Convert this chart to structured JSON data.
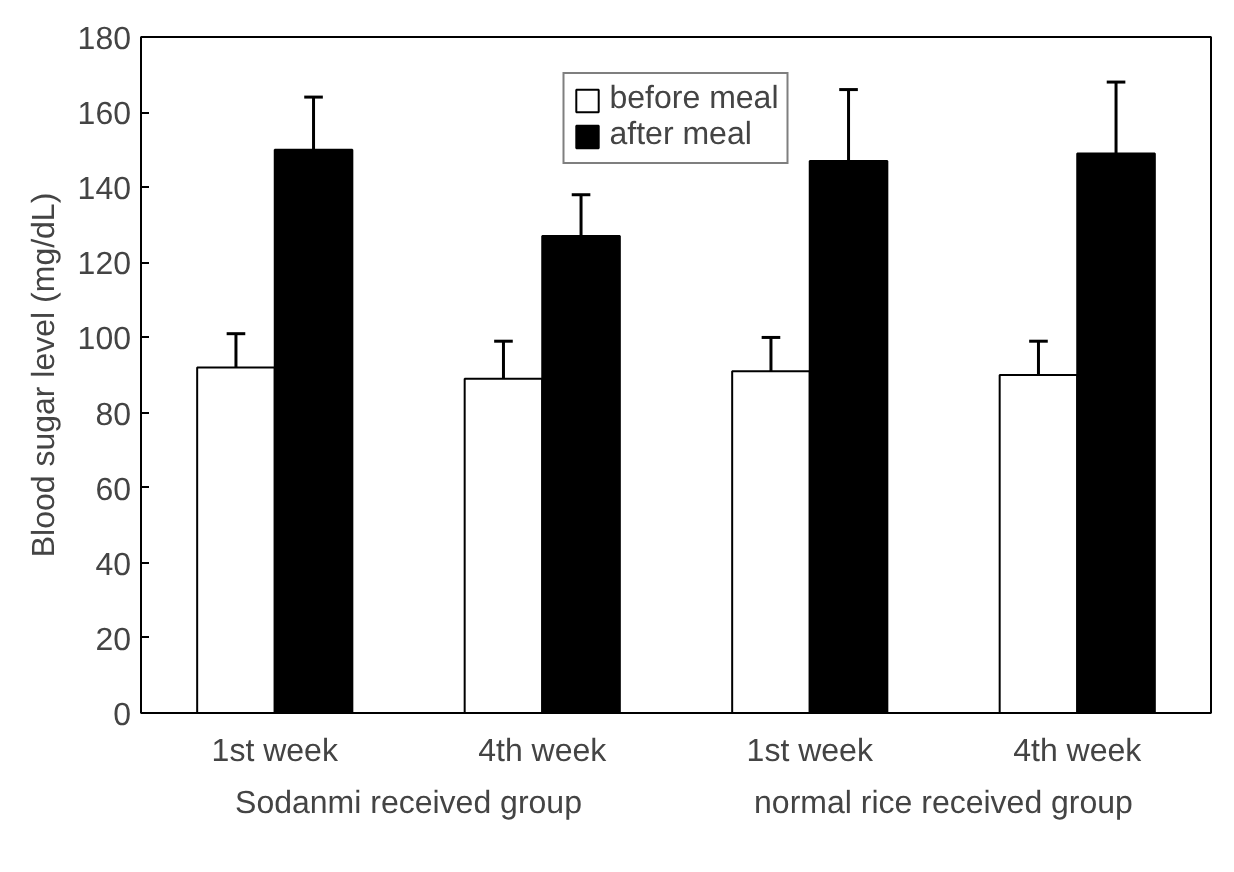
{
  "chart_data": {
    "type": "bar",
    "categories": [
      "1st week",
      "4th week",
      "1st week",
      "4th week"
    ],
    "ylabel": "Blood sugar level (mg/dL)",
    "annotations": [
      "Sodanmi received group",
      "normal rice received group"
    ],
    "series": [
      {
        "name": "before meal",
        "color": "#ffffff",
        "values": [
          92,
          89,
          91,
          90
        ],
        "errors": [
          [
            92,
            101
          ],
          [
            89,
            99
          ],
          [
            91,
            100
          ],
          [
            90,
            99
          ]
        ]
      },
      {
        "name": "after meal",
        "color": "#000000",
        "values": [
          150,
          127,
          147,
          149
        ],
        "errors": [
          [
            150,
            164
          ],
          [
            127,
            138
          ],
          [
            147,
            166
          ],
          [
            149,
            168
          ]
        ]
      }
    ],
    "ylim": [
      0,
      180
    ],
    "yticks": [
      0,
      20,
      40,
      60,
      80,
      100,
      120,
      140,
      160,
      180
    ],
    "grid": false,
    "legend": "top"
  }
}
